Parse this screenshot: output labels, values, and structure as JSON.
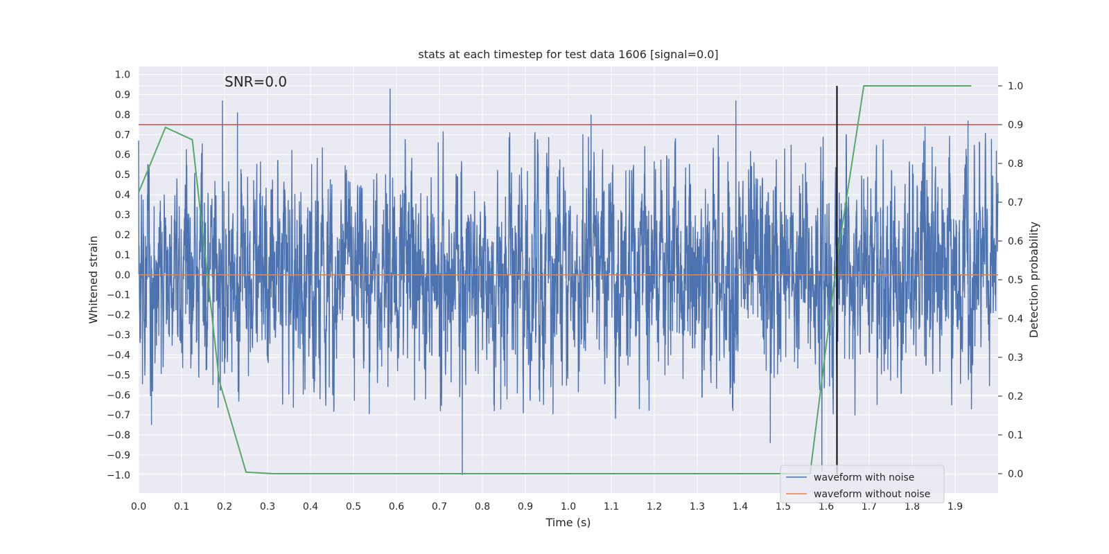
{
  "chart_data": {
    "type": "line",
    "title": "stats at each timestep for test data 1606 [signal=0.0]",
    "xlabel": "Time (s)",
    "ylabel": "Whitened strain",
    "ylabel_right": "Detection probability",
    "annotation": "SNR=0.0",
    "xlim": [
      0.0,
      2.0
    ],
    "ylim": [
      -1.09,
      1.04
    ],
    "y2lim": [
      -0.05,
      1.05
    ],
    "x_ticks": [
      0.0,
      0.1,
      0.2,
      0.3,
      0.4,
      0.5,
      0.6,
      0.7,
      0.8,
      0.9,
      1.0,
      1.1,
      1.2,
      1.3,
      1.4,
      1.5,
      1.6,
      1.7,
      1.8,
      1.9
    ],
    "x_tick_labels": [
      "0.0",
      "0.1",
      "0.2",
      "0.3",
      "0.4",
      "0.5",
      "0.6",
      "0.7",
      "0.8",
      "0.9",
      "1.0",
      "1.1",
      "1.2",
      "1.3",
      "1.4",
      "1.5",
      "1.6",
      "1.7",
      "1.8",
      "1.9"
    ],
    "y_ticks": [
      1.0,
      0.9,
      0.8,
      0.7,
      0.6,
      0.5,
      0.4,
      0.3,
      0.2,
      0.1,
      0.0,
      -0.1,
      -0.2,
      -0.3,
      -0.4,
      -0.5,
      -0.6,
      -0.7,
      -0.8,
      -0.9,
      -1.0
    ],
    "y_tick_labels": [
      "1.0",
      "0.9",
      "0.8",
      "0.7",
      "0.6",
      "0.5",
      "0.4",
      "0.3",
      "0.2",
      "0.1",
      "0.0",
      "−0.1",
      "−0.2",
      "−0.3",
      "−0.4",
      "−0.5",
      "−0.6",
      "−0.7",
      "−0.8",
      "−0.9",
      "−1.0"
    ],
    "y2_ticks": [
      1.0,
      0.9,
      0.8,
      0.7,
      0.6,
      0.5,
      0.4,
      0.3,
      0.2,
      0.1,
      0.0
    ],
    "y2_tick_labels": [
      "1.0",
      "0.9",
      "0.8",
      "0.7",
      "0.6",
      "0.5",
      "0.4",
      "0.3",
      "0.2",
      "0.1",
      "0.0"
    ],
    "grid": true,
    "legend_position": "lower-right",
    "series": [
      {
        "name": "waveform with noise",
        "axis": "left",
        "color": "#4c72b0",
        "description": "whitened noisy strain, values roughly within -1.0 to 0.93 over 0.0-2.0 s",
        "peaks": [
          {
            "x": 0.0,
            "y": 0.67
          },
          {
            "x": 0.195,
            "y": 0.87
          },
          {
            "x": 0.23,
            "y": 0.81
          },
          {
            "x": 0.585,
            "y": 0.93
          },
          {
            "x": 0.753,
            "y": -1.0
          },
          {
            "x": 1.053,
            "y": 0.8
          },
          {
            "x": 1.39,
            "y": 0.87
          },
          {
            "x": 1.59,
            "y": -0.98
          },
          {
            "x": 1.93,
            "y": 0.77
          },
          {
            "x": 1.83,
            "y": 0.74
          },
          {
            "x": 0.03,
            "y": -0.75
          },
          {
            "x": 1.47,
            "y": -0.84
          }
        ]
      },
      {
        "name": "waveform without noise",
        "axis": "left",
        "color": "#dd8452",
        "x": [
          0.0,
          2.0
        ],
        "y": [
          0.0,
          0.0
        ]
      },
      {
        "name": "",
        "axis": "right",
        "color": "#55a868",
        "x": [
          0.0,
          0.0625,
          0.125,
          0.1875,
          0.25,
          0.3125,
          0.375,
          0.4375,
          0.5,
          0.5625,
          0.625,
          0.6875,
          0.75,
          0.8125,
          0.875,
          0.9375,
          1.0,
          1.0625,
          1.125,
          1.1875,
          1.25,
          1.3125,
          1.375,
          1.4375,
          1.5,
          1.5625,
          1.625,
          1.6875,
          1.75,
          1.8125,
          1.875,
          1.9375
        ],
        "y": [
          0.725,
          0.893,
          0.861,
          0.24,
          0.004,
          0.0,
          0.0,
          0.0,
          0.0,
          0.0,
          0.0,
          0.0,
          0.0,
          0.0,
          0.0,
          0.0,
          0.0,
          0.0,
          0.0,
          0.0,
          0.0,
          0.0,
          0.0,
          0.0,
          0.0,
          0.0,
          0.55,
          1.0,
          1.0,
          1.0,
          1.0,
          1.0
        ]
      }
    ],
    "reference_lines": [
      {
        "orientation": "horizontal",
        "axis": "right",
        "value": 0.9,
        "color": "#c44e52"
      },
      {
        "orientation": "vertical",
        "value": 1.625,
        "y2_from": 0.0,
        "y2_to": 1.0,
        "color": "#000000"
      }
    ]
  }
}
